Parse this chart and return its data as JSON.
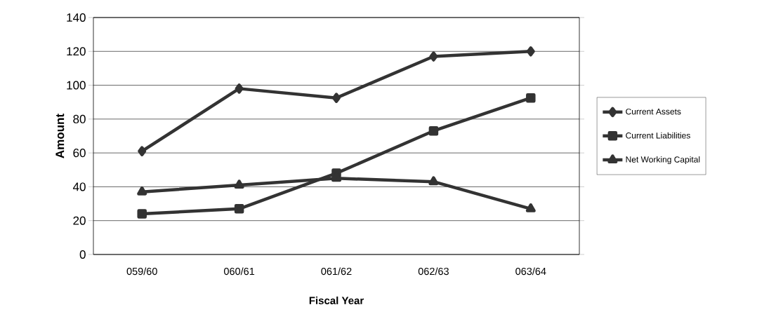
{
  "chart_data": {
    "type": "line",
    "xlabel": "Fiscal Year",
    "ylabel": "Amount",
    "categories": [
      "059/60",
      "060/61",
      "061/62",
      "062/63",
      "063/64"
    ],
    "series": [
      {
        "name": "Current Assets",
        "color": "#333333",
        "marker": "diamond",
        "values": [
          61,
          98,
          92.5,
          117,
          120
        ]
      },
      {
        "name": "Current Liabilities",
        "color": "#333333",
        "marker": "square",
        "values": [
          24,
          27,
          48,
          73,
          92.5
        ]
      },
      {
        "name": "Net Working Capital",
        "color": "#333333",
        "marker": "triangle",
        "values": [
          37,
          41,
          45,
          43,
          27
        ]
      }
    ],
    "ylim": [
      0,
      140
    ],
    "yticks": [
      0,
      20,
      40,
      60,
      80,
      100,
      120,
      140
    ],
    "grid": "y",
    "legend": "right",
    "line_style": "solid"
  }
}
